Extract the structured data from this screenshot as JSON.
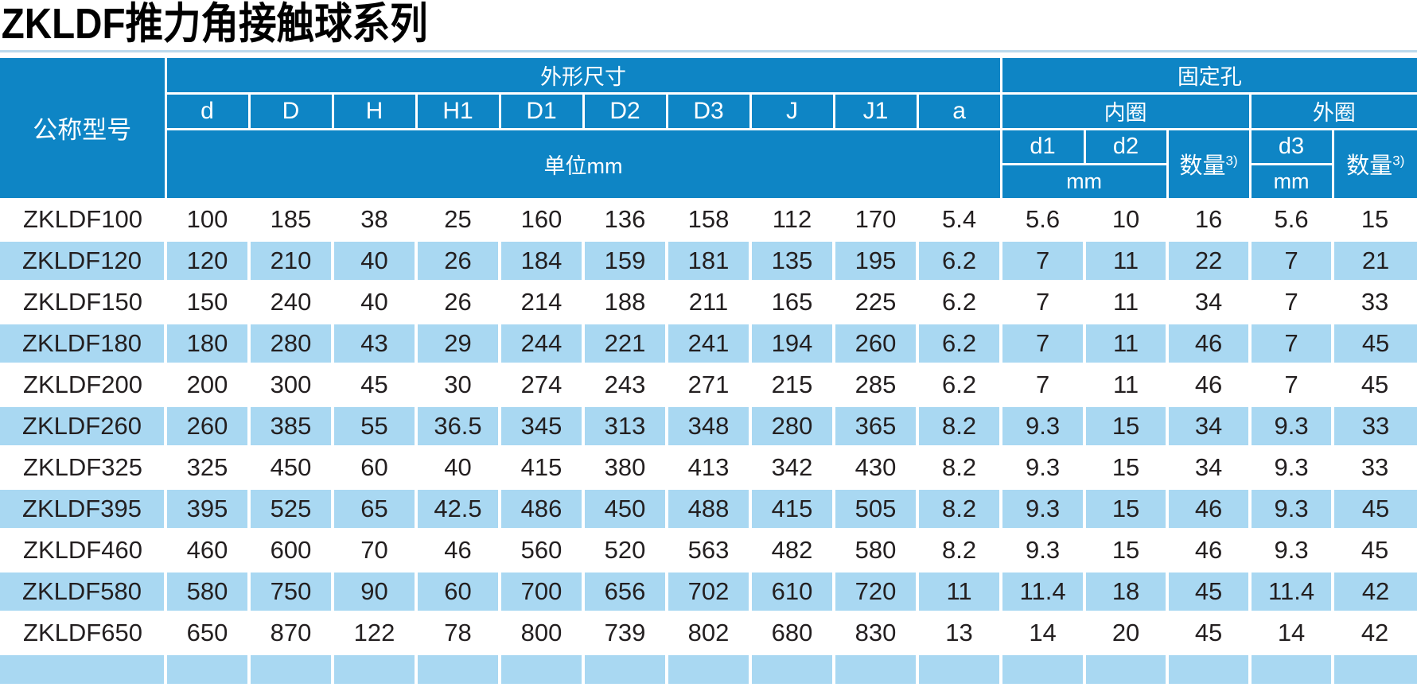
{
  "title": "ZKLDF推力角接触球系列",
  "colors": {
    "header_blue": "#0e85c5",
    "stripe_blue": "#a9d8f2",
    "text_dark": "#231f20"
  },
  "table": {
    "headers": {
      "model": "公称型号",
      "dims_group": "外形尺寸",
      "dims_cols": [
        "d",
        "D",
        "H",
        "H1",
        "D1",
        "D2",
        "D3",
        "J",
        "J1",
        "a"
      ],
      "dims_unit": "单位mm",
      "holes_group": "固定孔",
      "inner_ring": "内圈",
      "outer_ring": "外圈",
      "d1": "d1",
      "d2": "d2",
      "d3": "d3",
      "qty_label": "数量",
      "qty_sup": "3)",
      "mm": "mm"
    },
    "rows": [
      {
        "model": "ZKLDF100",
        "values": [
          "100",
          "185",
          "38",
          "25",
          "160",
          "136",
          "158",
          "112",
          "170",
          "5.4",
          "5.6",
          "10",
          "16",
          "5.6",
          "15"
        ]
      },
      {
        "model": "ZKLDF120",
        "values": [
          "120",
          "210",
          "40",
          "26",
          "184",
          "159",
          "181",
          "135",
          "195",
          "6.2",
          "7",
          "11",
          "22",
          "7",
          "21"
        ]
      },
      {
        "model": "ZKLDF150",
        "values": [
          "150",
          "240",
          "40",
          "26",
          "214",
          "188",
          "211",
          "165",
          "225",
          "6.2",
          "7",
          "11",
          "34",
          "7",
          "33"
        ]
      },
      {
        "model": "ZKLDF180",
        "values": [
          "180",
          "280",
          "43",
          "29",
          "244",
          "221",
          "241",
          "194",
          "260",
          "6.2",
          "7",
          "11",
          "46",
          "7",
          "45"
        ]
      },
      {
        "model": "ZKLDF200",
        "values": [
          "200",
          "300",
          "45",
          "30",
          "274",
          "243",
          "271",
          "215",
          "285",
          "6.2",
          "7",
          "11",
          "46",
          "7",
          "45"
        ]
      },
      {
        "model": "ZKLDF260",
        "values": [
          "260",
          "385",
          "55",
          "36.5",
          "345",
          "313",
          "348",
          "280",
          "365",
          "8.2",
          "9.3",
          "15",
          "34",
          "9.3",
          "33"
        ]
      },
      {
        "model": "ZKLDF325",
        "values": [
          "325",
          "450",
          "60",
          "40",
          "415",
          "380",
          "413",
          "342",
          "430",
          "8.2",
          "9.3",
          "15",
          "34",
          "9.3",
          "33"
        ]
      },
      {
        "model": "ZKLDF395",
        "values": [
          "395",
          "525",
          "65",
          "42.5",
          "486",
          "450",
          "488",
          "415",
          "505",
          "8.2",
          "9.3",
          "15",
          "46",
          "9.3",
          "45"
        ]
      },
      {
        "model": "ZKLDF460",
        "values": [
          "460",
          "600",
          "70",
          "46",
          "560",
          "520",
          "563",
          "482",
          "580",
          "8.2",
          "9.3",
          "15",
          "46",
          "9.3",
          "45"
        ]
      },
      {
        "model": "ZKLDF580",
        "values": [
          "580",
          "750",
          "90",
          "60",
          "700",
          "656",
          "702",
          "610",
          "720",
          "11",
          "11.4",
          "18",
          "45",
          "11.4",
          "42"
        ]
      },
      {
        "model": "ZKLDF650",
        "values": [
          "650",
          "870",
          "122",
          "78",
          "800",
          "739",
          "802",
          "680",
          "830",
          "13",
          "14",
          "20",
          "45",
          "14",
          "42"
        ]
      }
    ]
  }
}
